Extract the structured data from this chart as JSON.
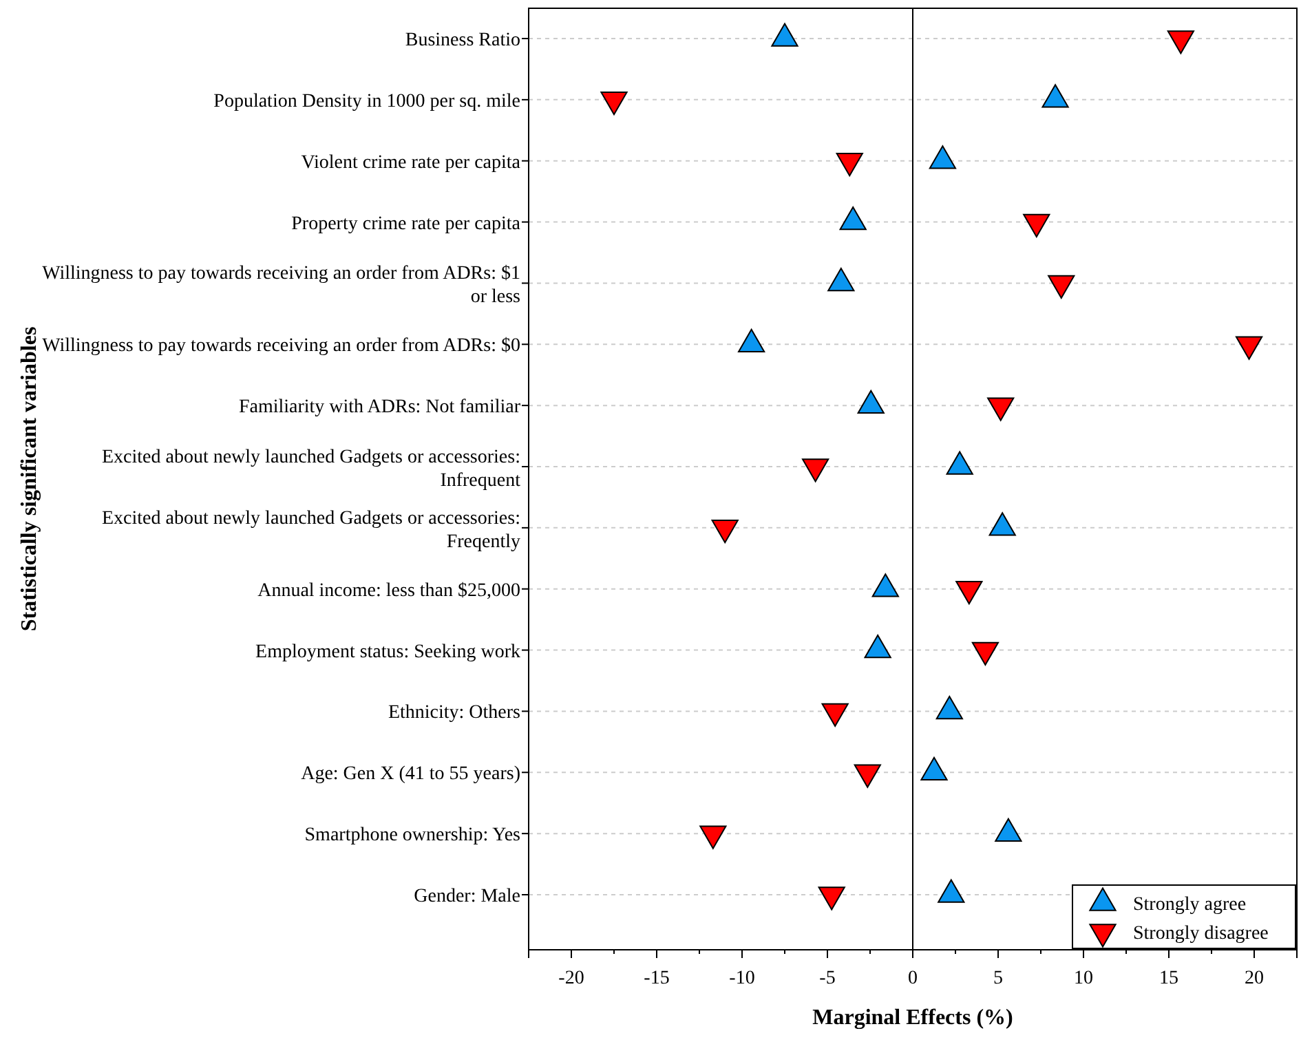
{
  "chart_data": {
    "type": "scatter",
    "orientation": "horizontal",
    "xlabel": "Marginal Effects (%)",
    "ylabel": "Statistically significant variables",
    "categories": [
      "Business Ratio",
      "Population Density in 1000 per sq. mile",
      "Violent crime rate per capita",
      "Property crime rate per capita",
      "Willingness to pay towards receiving an order from ADRs: $1 or less",
      "Willingness to pay towards receiving an order from ADRs: $0",
      "Familiarity with ADRs: Not familiar",
      "Excited about newly launched Gadgets or accessories: Infrequent",
      "Excited about newly launched Gadgets or accessories: Freqently",
      "Annual income: less than $25,000",
      "Employment status: Seeking work",
      "Ethnicity: Others",
      "Age: Gen X (41 to 55 years)",
      "Smartphone ownership: Yes",
      "Gender: Male"
    ],
    "series": [
      {
        "name": "Strongly agree",
        "color": "#0a96f0",
        "marker": "triangle",
        "values": [
          -7.5,
          8.35,
          1.75,
          -3.5,
          -4.2,
          -9.45,
          -2.45,
          2.75,
          5.25,
          -1.6,
          -2.05,
          2.15,
          1.25,
          5.6,
          2.25
        ]
      },
      {
        "name": "Strongly disagree",
        "color": "#ff0000",
        "marker": "triangle-down",
        "values": [
          15.7,
          -17.5,
          -3.7,
          7.25,
          8.7,
          19.7,
          5.15,
          -5.7,
          -11.0,
          3.3,
          4.25,
          -4.55,
          -2.65,
          -11.7,
          -4.75
        ]
      }
    ],
    "xlim": [
      -22.5,
      22.5
    ],
    "xticks": [
      -20,
      -15,
      -10,
      -5,
      0,
      5,
      10,
      15,
      20
    ],
    "ref_lines": [
      {
        "axis": "x",
        "value": 0,
        "color": "#000000"
      }
    ],
    "grid": "y",
    "legend": "bottom right"
  }
}
